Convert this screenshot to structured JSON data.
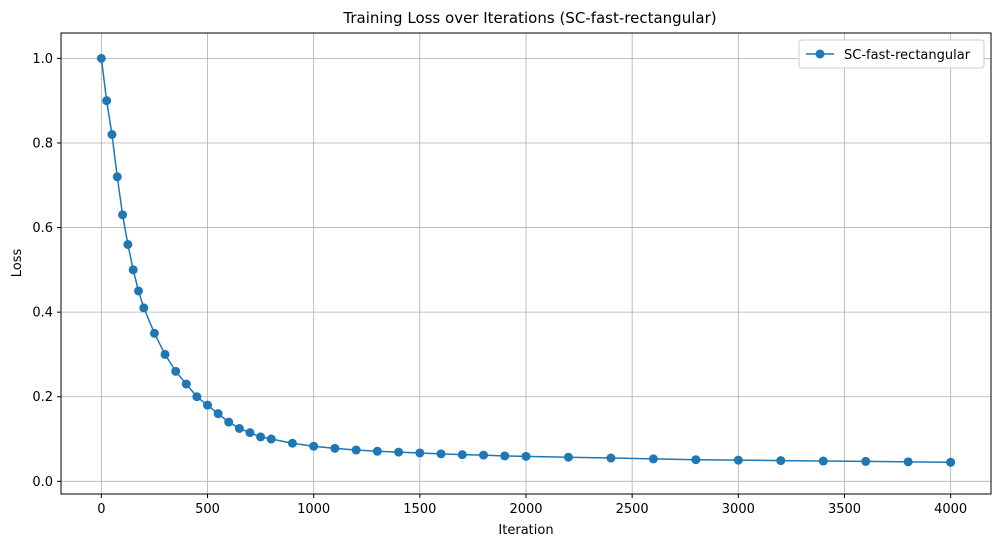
{
  "chart_data": {
    "type": "line",
    "title": "Training Loss over Iterations (SC-fast-rectangular)",
    "xlabel": "Iteration",
    "ylabel": "Loss",
    "xlim": [
      -190,
      4190
    ],
    "ylim": [
      -0.03,
      1.06
    ],
    "x_ticks": [
      0,
      500,
      1000,
      1500,
      2000,
      2500,
      3000,
      3500,
      4000
    ],
    "y_ticks": [
      0.0,
      0.2,
      0.4,
      0.6,
      0.8,
      1.0
    ],
    "grid": true,
    "legend_position": "top-right",
    "marker": "circle",
    "color": "#1f77b4",
    "series": [
      {
        "name": "SC-fast-rectangular",
        "x": [
          0,
          25,
          50,
          75,
          100,
          125,
          150,
          175,
          200,
          250,
          300,
          350,
          400,
          450,
          500,
          550,
          600,
          650,
          700,
          750,
          800,
          900,
          1000,
          1100,
          1200,
          1300,
          1400,
          1500,
          1600,
          1700,
          1800,
          1900,
          2000,
          2200,
          2400,
          2600,
          2800,
          3000,
          3200,
          3400,
          3600,
          3800,
          4000
        ],
        "y": [
          1.0,
          0.9,
          0.82,
          0.72,
          0.63,
          0.56,
          0.5,
          0.45,
          0.41,
          0.35,
          0.3,
          0.26,
          0.23,
          0.2,
          0.18,
          0.16,
          0.14,
          0.125,
          0.115,
          0.105,
          0.1,
          0.09,
          0.083,
          0.078,
          0.074,
          0.071,
          0.069,
          0.067,
          0.065,
          0.063,
          0.062,
          0.06,
          0.059,
          0.057,
          0.055,
          0.053,
          0.051,
          0.05,
          0.049,
          0.048,
          0.047,
          0.046,
          0.045
        ]
      }
    ]
  }
}
